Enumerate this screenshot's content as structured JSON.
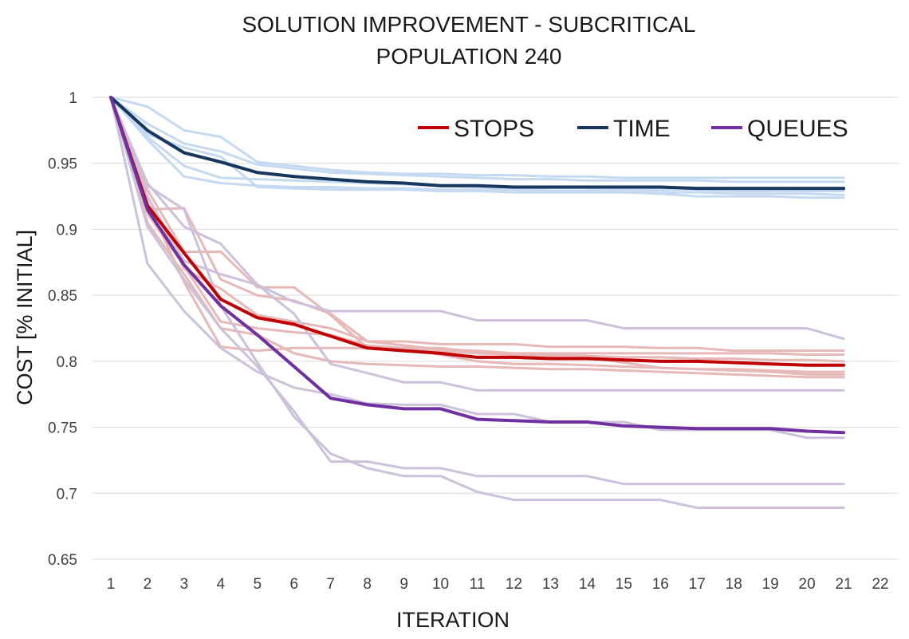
{
  "chart_data": {
    "type": "line",
    "title": "SOLUTION IMPROVEMENT - SUBCRITICAL",
    "subtitle": "POPULATION 240",
    "xlabel": "ITERATION",
    "ylabel": "COST [% INITIAL]",
    "x_categories": [
      "1",
      "2",
      "3",
      "4",
      "5",
      "6",
      "7",
      "8",
      "9",
      "10",
      "11",
      "12",
      "13",
      "14",
      "15",
      "16",
      "17",
      "18",
      "19",
      "20",
      "21",
      "22"
    ],
    "ylim": [
      0.65,
      1.0
    ],
    "yticks": [
      0.65,
      0.7,
      0.75,
      0.8,
      0.85,
      0.9,
      0.95,
      1
    ],
    "ytick_labels": [
      "0.65",
      "0.7",
      "0.75",
      "0.8",
      "0.85",
      "0.9",
      "0.95",
      "1"
    ],
    "grid": true,
    "legend_position": "top-right",
    "colors": {
      "stops": "#c00000",
      "time": "#17375e",
      "queues": "#7030a0",
      "stops_light": "#e6b8b7",
      "time_light": "#c5d9f1",
      "queues_light": "#ccc0da"
    },
    "series": [
      {
        "name": "STOPS",
        "color_key": "stops",
        "values": [
          1,
          0.918,
          0.882,
          0.847,
          0.833,
          0.828,
          0.819,
          0.81,
          0.808,
          0.806,
          0.803,
          0.803,
          0.802,
          0.802,
          0.801,
          0.8,
          0.8,
          0.799,
          0.798,
          0.797,
          0.797
        ]
      },
      {
        "name": "TIME",
        "color_key": "time",
        "values": [
          1,
          0.975,
          0.958,
          0.951,
          0.943,
          0.94,
          0.938,
          0.936,
          0.935,
          0.933,
          0.933,
          0.932,
          0.932,
          0.932,
          0.932,
          0.932,
          0.931,
          0.931,
          0.931,
          0.931,
          0.931
        ]
      },
      {
        "name": "QUEUES",
        "color_key": "queues",
        "values": [
          1,
          0.915,
          0.873,
          0.842,
          0.82,
          0.796,
          0.772,
          0.767,
          0.764,
          0.764,
          0.756,
          0.755,
          0.754,
          0.754,
          0.751,
          0.75,
          0.749,
          0.749,
          0.749,
          0.747,
          0.746
        ]
      }
    ],
    "background_series": [
      {
        "color_key": "time_light",
        "values": [
          1,
          0.993,
          0.975,
          0.97,
          0.951,
          0.948,
          0.945,
          0.943,
          0.942,
          0.942,
          0.941,
          0.941,
          0.94,
          0.94,
          0.939,
          0.939,
          0.939,
          0.939,
          0.939,
          0.939,
          0.939
        ]
      },
      {
        "color_key": "time_light",
        "values": [
          1,
          0.98,
          0.965,
          0.959,
          0.949,
          0.946,
          0.943,
          0.942,
          0.941,
          0.94,
          0.939,
          0.938,
          0.938,
          0.937,
          0.937,
          0.937,
          0.937,
          0.936,
          0.936,
          0.936,
          0.936
        ]
      },
      {
        "color_key": "time_light",
        "values": [
          1,
          0.97,
          0.948,
          0.939,
          0.938,
          0.937,
          0.936,
          0.935,
          0.934,
          0.933,
          0.932,
          0.931,
          0.931,
          0.931,
          0.93,
          0.93,
          0.93,
          0.929,
          0.929,
          0.929,
          0.929
        ]
      },
      {
        "color_key": "time_light",
        "values": [
          1,
          0.968,
          0.94,
          0.935,
          0.933,
          0.932,
          0.932,
          0.931,
          0.931,
          0.93,
          0.93,
          0.93,
          0.929,
          0.929,
          0.929,
          0.928,
          0.928,
          0.927,
          0.927,
          0.927,
          0.926
        ]
      },
      {
        "color_key": "time_light",
        "values": [
          1,
          0.972,
          0.962,
          0.955,
          0.932,
          0.931,
          0.93,
          0.93,
          0.93,
          0.929,
          0.929,
          0.928,
          0.928,
          0.928,
          0.928,
          0.927,
          0.925,
          0.925,
          0.925,
          0.924,
          0.924
        ]
      },
      {
        "color_key": "stops_light",
        "values": [
          1,
          0.915,
          0.916,
          0.862,
          0.85,
          0.846,
          0.836,
          0.815,
          0.815,
          0.813,
          0.813,
          0.813,
          0.811,
          0.811,
          0.811,
          0.81,
          0.81,
          0.808,
          0.808,
          0.808,
          0.808
        ]
      },
      {
        "color_key": "stops_light",
        "values": [
          1,
          0.93,
          0.883,
          0.883,
          0.856,
          0.856,
          0.835,
          0.81,
          0.81,
          0.81,
          0.807,
          0.806,
          0.806,
          0.806,
          0.806,
          0.806,
          0.806,
          0.806,
          0.806,
          0.805,
          0.805
        ]
      },
      {
        "color_key": "stops_light",
        "values": [
          1,
          0.925,
          0.87,
          0.855,
          0.835,
          0.83,
          0.825,
          0.815,
          0.812,
          0.809,
          0.808,
          0.806,
          0.805,
          0.804,
          0.803,
          0.803,
          0.802,
          0.802,
          0.801,
          0.801,
          0.8
        ]
      },
      {
        "color_key": "stops_light",
        "values": [
          1,
          0.912,
          0.872,
          0.83,
          0.825,
          0.822,
          0.82,
          0.812,
          0.81,
          0.805,
          0.8,
          0.798,
          0.798,
          0.797,
          0.796,
          0.795,
          0.794,
          0.794,
          0.793,
          0.792,
          0.792
        ]
      },
      {
        "color_key": "stops_light",
        "values": [
          1,
          0.92,
          0.86,
          0.811,
          0.808,
          0.81,
          0.81,
          0.81,
          0.809,
          0.808,
          0.806,
          0.805,
          0.804,
          0.803,
          0.799,
          0.795,
          0.794,
          0.793,
          0.792,
          0.79,
          0.79
        ]
      },
      {
        "color_key": "stops_light",
        "values": [
          1,
          0.905,
          0.866,
          0.825,
          0.82,
          0.806,
          0.8,
          0.798,
          0.797,
          0.796,
          0.796,
          0.795,
          0.794,
          0.794,
          0.793,
          0.792,
          0.791,
          0.79,
          0.789,
          0.788,
          0.788
        ]
      },
      {
        "color_key": "queues_light",
        "values": [
          1,
          0.935,
          0.902,
          0.889,
          0.858,
          0.845,
          0.838,
          0.838,
          0.838,
          0.838,
          0.831,
          0.831,
          0.831,
          0.831,
          0.825,
          0.825,
          0.825,
          0.825,
          0.825,
          0.825,
          0.817
        ]
      },
      {
        "color_key": "queues_light",
        "values": [
          1,
          0.925,
          0.876,
          0.866,
          0.858,
          0.836,
          0.798,
          0.791,
          0.784,
          0.784,
          0.778,
          0.778,
          0.778,
          0.778,
          0.778,
          0.778,
          0.778,
          0.778,
          0.778,
          0.778,
          0.778
        ]
      },
      {
        "color_key": "queues_light",
        "values": [
          1,
          0.933,
          0.915,
          0.842,
          0.799,
          0.758,
          0.73,
          0.719,
          0.713,
          0.713,
          0.701,
          0.695,
          0.695,
          0.695,
          0.695,
          0.695,
          0.689,
          0.689,
          0.689,
          0.689,
          0.689
        ]
      },
      {
        "color_key": "queues_light",
        "values": [
          1,
          0.902,
          0.862,
          0.825,
          0.796,
          0.762,
          0.724,
          0.724,
          0.719,
          0.719,
          0.713,
          0.713,
          0.713,
          0.713,
          0.707,
          0.707,
          0.707,
          0.707,
          0.707,
          0.707,
          0.707
        ]
      },
      {
        "color_key": "queues_light",
        "values": [
          1,
          0.874,
          0.838,
          0.81,
          0.792,
          0.78,
          0.775,
          0.768,
          0.767,
          0.767,
          0.76,
          0.76,
          0.754,
          0.754,
          0.754,
          0.748,
          0.748,
          0.748,
          0.748,
          0.742,
          0.742
        ]
      }
    ]
  },
  "legend": {
    "stops": "STOPS",
    "time": "TIME",
    "queues": "QUEUES"
  }
}
